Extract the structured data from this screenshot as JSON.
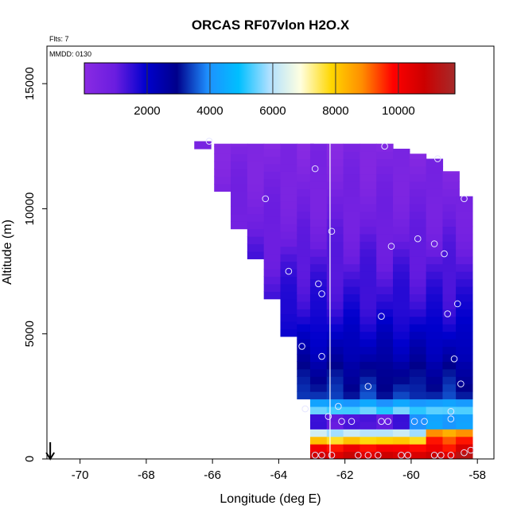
{
  "chart_data": {
    "type": "heatmap",
    "title": "ORCAS RF07vlon H2O.X",
    "subtitle_flights": "Flts: 7",
    "subtitle_date": "MMDD: 0130",
    "xlabel": "Longitude (deg E)",
    "ylabel": "Altitude (m)",
    "xlim": [
      -71.0,
      -57.5
    ],
    "ylim": [
      0,
      16500
    ],
    "xticks": [
      -70,
      -68,
      -66,
      -64,
      -62,
      -60,
      -58
    ],
    "yticks": [
      0,
      5000,
      10000,
      15000
    ],
    "xtick_labels": [
      "-70",
      "-68",
      "-66",
      "-64",
      "-62",
      "-60",
      "-58"
    ],
    "ytick_labels": [
      "0",
      "5000",
      "10000",
      "15000"
    ],
    "colorbar": {
      "range": [
        0,
        11800
      ],
      "ticks": [
        2000,
        4000,
        6000,
        8000,
        10000
      ],
      "tick_labels": [
        "2000",
        "4000",
        "6000",
        "8000",
        "10000"
      ],
      "colors": [
        "#8a2be2",
        "#6a1de0",
        "#0000cd",
        "#00008b",
        "#1e90ff",
        "#00bfff",
        "#b0e0ff",
        "#ffffe0",
        "#ffd700",
        "#ff8c00",
        "#ff0000",
        "#cc0000",
        "#a52a2a"
      ]
    },
    "reference_line_x": -62.45,
    "arrow_x": -70.9,
    "profiles": [
      {
        "lon": -66.3,
        "top": 12700,
        "bottom": 12400
      },
      {
        "lon": -65.7,
        "top": 12600,
        "bottom": 10700
      },
      {
        "lon": -65.2,
        "top": 12600,
        "bottom": 9200
      },
      {
        "lon": -64.7,
        "top": 12600,
        "bottom": 8000
      },
      {
        "lon": -64.2,
        "top": 12600,
        "bottom": 6400
      },
      {
        "lon": -63.7,
        "top": 12600,
        "bottom": 4900
      },
      {
        "lon": -63.2,
        "top": 12600,
        "bottom": 2400
      },
      {
        "lon": -62.8,
        "top": 12600,
        "bottom": 0
      },
      {
        "lon": -62.3,
        "top": 12600,
        "bottom": 0
      },
      {
        "lon": -61.8,
        "top": 12600,
        "bottom": 0
      },
      {
        "lon": -61.3,
        "top": 12600,
        "bottom": 0
      },
      {
        "lon": -60.8,
        "top": 12600,
        "bottom": 0
      },
      {
        "lon": -60.3,
        "top": 12400,
        "bottom": 0
      },
      {
        "lon": -59.8,
        "top": 12200,
        "bottom": 0
      },
      {
        "lon": -59.3,
        "top": 12000,
        "bottom": 0
      },
      {
        "lon": -58.8,
        "top": 11500,
        "bottom": 0
      },
      {
        "lon": -58.4,
        "top": 10500,
        "bottom": 0
      }
    ],
    "points": [
      {
        "lon": -66.1,
        "alt": 12700
      },
      {
        "lon": -60.8,
        "alt": 12500
      },
      {
        "lon": -59.2,
        "alt": 12000
      },
      {
        "lon": -62.9,
        "alt": 11600
      },
      {
        "lon": -64.4,
        "alt": 10400
      },
      {
        "lon": -58.4,
        "alt": 10400
      },
      {
        "lon": -62.4,
        "alt": 9100
      },
      {
        "lon": -59.8,
        "alt": 8800
      },
      {
        "lon": -60.6,
        "alt": 8500
      },
      {
        "lon": -59.3,
        "alt": 8600
      },
      {
        "lon": -59.0,
        "alt": 8200
      },
      {
        "lon": -63.7,
        "alt": 7500
      },
      {
        "lon": -62.8,
        "alt": 7000
      },
      {
        "lon": -62.7,
        "alt": 6600
      },
      {
        "lon": -58.6,
        "alt": 6200
      },
      {
        "lon": -58.9,
        "alt": 5800
      },
      {
        "lon": -60.9,
        "alt": 5700
      },
      {
        "lon": -63.3,
        "alt": 4500
      },
      {
        "lon": -62.7,
        "alt": 4100
      },
      {
        "lon": -58.7,
        "alt": 4000
      },
      {
        "lon": -58.5,
        "alt": 3000
      },
      {
        "lon": -61.3,
        "alt": 2900
      },
      {
        "lon": -62.2,
        "alt": 2100
      },
      {
        "lon": -63.2,
        "alt": 2000
      },
      {
        "lon": -58.8,
        "alt": 1900
      },
      {
        "lon": -62.5,
        "alt": 1700
      },
      {
        "lon": -62.1,
        "alt": 1500
      },
      {
        "lon": -61.8,
        "alt": 1500
      },
      {
        "lon": -60.9,
        "alt": 1500
      },
      {
        "lon": -60.7,
        "alt": 1500
      },
      {
        "lon": -59.9,
        "alt": 1500
      },
      {
        "lon": -59.6,
        "alt": 1500
      },
      {
        "lon": -58.8,
        "alt": 1600
      },
      {
        "lon": -62.9,
        "alt": 150
      },
      {
        "lon": -62.7,
        "alt": 150
      },
      {
        "lon": -62.4,
        "alt": 150
      },
      {
        "lon": -61.6,
        "alt": 150
      },
      {
        "lon": -61.3,
        "alt": 150
      },
      {
        "lon": -61.0,
        "alt": 150
      },
      {
        "lon": -60.3,
        "alt": 150
      },
      {
        "lon": -60.1,
        "alt": 150
      },
      {
        "lon": -59.3,
        "alt": 150
      },
      {
        "lon": -59.1,
        "alt": 150
      },
      {
        "lon": -58.8,
        "alt": 150
      },
      {
        "lon": -58.4,
        "alt": 250
      },
      {
        "lon": -58.2,
        "alt": 350
      }
    ]
  }
}
